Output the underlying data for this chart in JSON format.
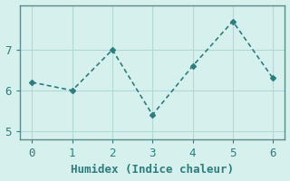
{
  "x": [
    0,
    1,
    2,
    3,
    4,
    5,
    6
  ],
  "y": [
    6.2,
    6.0,
    7.0,
    5.4,
    6.6,
    7.7,
    6.3
  ],
  "line_color": "#2d7d7d",
  "marker": "D",
  "marker_size": 3,
  "background_color": "#d6f0ee",
  "grid_color": "#b0d8d4",
  "xlabel": "Humidex (Indice chaleur)",
  "xlabel_fontsize": 9,
  "yticks": [
    5,
    6,
    7
  ],
  "ylim": [
    4.8,
    8.1
  ],
  "xlim": [
    -0.3,
    6.3
  ],
  "tick_fontsize": 9,
  "axis_color": "#5a8a8a"
}
